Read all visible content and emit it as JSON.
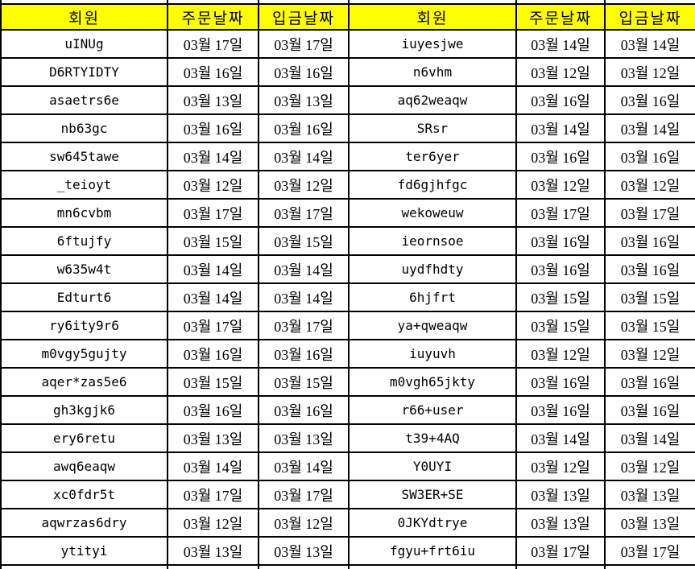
{
  "colors": {
    "header_bg": "#ffff00",
    "cell_bg": "#ffffff",
    "border": "#000000",
    "text": "#000000"
  },
  "table": {
    "headers": [
      "회원",
      "주문날짜",
      "입금날짜",
      "회원",
      "주문날짜",
      "입금날짜"
    ],
    "column_names": [
      "member",
      "order-date",
      "deposit-date",
      "member",
      "order-date",
      "deposit-date"
    ],
    "rows": [
      [
        "uINUg",
        "03월 17일",
        "03월 17일",
        "iuyesjwe",
        "03월 14일",
        "03월 14일"
      ],
      [
        "D6RTYIDTY",
        "03월 16일",
        "03월 16일",
        "n6vhm",
        "03월 12일",
        "03월 12일"
      ],
      [
        "asaetrs6e",
        "03월 13일",
        "03월 13일",
        "aq62weaqw",
        "03월 16일",
        "03월 16일"
      ],
      [
        "nb63gc",
        "03월 16일",
        "03월 16일",
        "SRsr",
        "03월 14일",
        "03월 14일"
      ],
      [
        "sw645tawe",
        "03월 14일",
        "03월 14일",
        "ter6yer",
        "03월 16일",
        "03월 16일"
      ],
      [
        "_teioyt",
        "03월 12일",
        "03월 12일",
        "fd6gjhfgc",
        "03월 12일",
        "03월 12일"
      ],
      [
        "mn6cvbm",
        "03월 17일",
        "03월 17일",
        "wekoweuw",
        "03월 17일",
        "03월 17일"
      ],
      [
        "6ftujfy",
        "03월 15일",
        "03월 15일",
        "ieornsoe",
        "03월 16일",
        "03월 16일"
      ],
      [
        "w635w4t",
        "03월 14일",
        "03월 14일",
        "uydfhdty",
        "03월 16일",
        "03월 16일"
      ],
      [
        "Edturt6",
        "03월 14일",
        "03월 14일",
        "6hjfrt",
        "03월 15일",
        "03월 15일"
      ],
      [
        "ry6ity9r6",
        "03월 17일",
        "03월 17일",
        "ya+qweaqw",
        "03월 15일",
        "03월 15일"
      ],
      [
        "m0vgy5gujty",
        "03월 16일",
        "03월 16일",
        "iuyuvh",
        "03월 12일",
        "03월 12일"
      ],
      [
        "aqer*zas5e6",
        "03월 15일",
        "03월 15일",
        "m0vgh65jkty",
        "03월 16일",
        "03월 16일"
      ],
      [
        "gh3kgjk6",
        "03월 16일",
        "03월 16일",
        "r66+user",
        "03월 16일",
        "03월 16일"
      ],
      [
        "ery6retu",
        "03월 13일",
        "03월 13일",
        "t39+4AQ",
        "03월 14일",
        "03월 14일"
      ],
      [
        "awq6eaqw",
        "03월 14일",
        "03월 14일",
        "Y0UYI",
        "03월 12일",
        "03월 12일"
      ],
      [
        "xc0fdr5t",
        "03월 17일",
        "03월 17일",
        "SW3ER+SE",
        "03월 13일",
        "03월 13일"
      ],
      [
        "aqwrzas6dry",
        "03월 12일",
        "03월 12일",
        "0JKYdtrye",
        "03월 13일",
        "03월 13일"
      ],
      [
        "ytityi",
        "03월 13일",
        "03월 13일",
        "fgyu+frt6iu",
        "03월 17일",
        "03월 17일"
      ]
    ]
  }
}
